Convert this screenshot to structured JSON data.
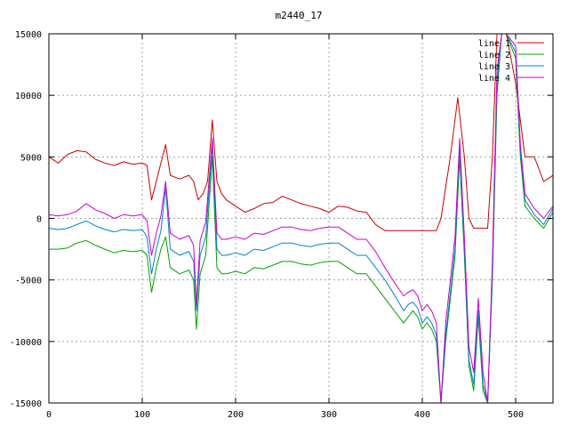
{
  "chart_data": {
    "type": "line",
    "title": "m2440_17",
    "xlabel": "",
    "ylabel": "",
    "xlim": [
      0,
      540
    ],
    "ylim": [
      -15000,
      15000
    ],
    "x_ticks": [
      0,
      100,
      200,
      300,
      400,
      500
    ],
    "y_ticks": [
      -15000,
      -10000,
      -5000,
      0,
      5000,
      10000,
      15000
    ],
    "grid": true,
    "legend_position": "top-right",
    "series": [
      {
        "name": "line 1",
        "color": "#cc0000",
        "points": [
          [
            0,
            5000
          ],
          [
            10,
            4500
          ],
          [
            20,
            5200
          ],
          [
            30,
            5500
          ],
          [
            40,
            5400
          ],
          [
            50,
            4800
          ],
          [
            60,
            4500
          ],
          [
            70,
            4300
          ],
          [
            80,
            4600
          ],
          [
            90,
            4400
          ],
          [
            100,
            4500
          ],
          [
            105,
            4300
          ],
          [
            110,
            1500
          ],
          [
            115,
            3000
          ],
          [
            120,
            4500
          ],
          [
            125,
            6000
          ],
          [
            130,
            3500
          ],
          [
            140,
            3200
          ],
          [
            150,
            3500
          ],
          [
            155,
            3000
          ],
          [
            160,
            1500
          ],
          [
            165,
            2000
          ],
          [
            170,
            3000
          ],
          [
            175,
            8000
          ],
          [
            180,
            3000
          ],
          [
            185,
            2000
          ],
          [
            190,
            1500
          ],
          [
            200,
            1000
          ],
          [
            210,
            500
          ],
          [
            220,
            800
          ],
          [
            230,
            1200
          ],
          [
            240,
            1300
          ],
          [
            250,
            1800
          ],
          [
            260,
            1500
          ],
          [
            270,
            1200
          ],
          [
            280,
            1000
          ],
          [
            290,
            800
          ],
          [
            300,
            500
          ],
          [
            310,
            1000
          ],
          [
            320,
            900
          ],
          [
            330,
            600
          ],
          [
            340,
            500
          ],
          [
            350,
            -500
          ],
          [
            360,
            -1000
          ],
          [
            380,
            -1000
          ],
          [
            400,
            -1000
          ],
          [
            415,
            -1000
          ],
          [
            420,
            0
          ],
          [
            430,
            5000
          ],
          [
            438,
            9800
          ],
          [
            445,
            5000
          ],
          [
            450,
            0
          ],
          [
            455,
            -800
          ],
          [
            470,
            -800
          ],
          [
            475,
            5000
          ],
          [
            480,
            15000
          ],
          [
            490,
            15000
          ],
          [
            500,
            11000
          ],
          [
            510,
            5000
          ],
          [
            520,
            5000
          ],
          [
            530,
            3000
          ],
          [
            540,
            3500
          ]
        ]
      },
      {
        "name": "line 2",
        "color": "#00a000",
        "points": [
          [
            0,
            -2500
          ],
          [
            10,
            -2500
          ],
          [
            20,
            -2400
          ],
          [
            30,
            -2000
          ],
          [
            40,
            -1800
          ],
          [
            50,
            -2200
          ],
          [
            60,
            -2500
          ],
          [
            70,
            -2800
          ],
          [
            80,
            -2600
          ],
          [
            90,
            -2700
          ],
          [
            100,
            -2600
          ],
          [
            105,
            -3000
          ],
          [
            110,
            -6000
          ],
          [
            115,
            -4000
          ],
          [
            120,
            -2500
          ],
          [
            125,
            -1500
          ],
          [
            130,
            -4000
          ],
          [
            140,
            -4500
          ],
          [
            150,
            -4200
          ],
          [
            155,
            -5000
          ],
          [
            158,
            -9000
          ],
          [
            162,
            -4500
          ],
          [
            168,
            -3000
          ],
          [
            175,
            5000
          ],
          [
            180,
            -4000
          ],
          [
            185,
            -4500
          ],
          [
            190,
            -4500
          ],
          [
            200,
            -4300
          ],
          [
            210,
            -4500
          ],
          [
            220,
            -4000
          ],
          [
            230,
            -4100
          ],
          [
            240,
            -3800
          ],
          [
            250,
            -3500
          ],
          [
            260,
            -3500
          ],
          [
            270,
            -3700
          ],
          [
            280,
            -3800
          ],
          [
            290,
            -3600
          ],
          [
            300,
            -3500
          ],
          [
            310,
            -3500
          ],
          [
            320,
            -4000
          ],
          [
            330,
            -4500
          ],
          [
            340,
            -4500
          ],
          [
            350,
            -5500
          ],
          [
            360,
            -6500
          ],
          [
            370,
            -7500
          ],
          [
            380,
            -8500
          ],
          [
            385,
            -8000
          ],
          [
            390,
            -7500
          ],
          [
            395,
            -8000
          ],
          [
            400,
            -9000
          ],
          [
            405,
            -8500
          ],
          [
            410,
            -9000
          ],
          [
            415,
            -10000
          ],
          [
            420,
            -15000
          ],
          [
            425,
            -10000
          ],
          [
            435,
            -3000
          ],
          [
            440,
            5000
          ],
          [
            445,
            -3000
          ],
          [
            450,
            -12000
          ],
          [
            455,
            -14000
          ],
          [
            460,
            -8000
          ],
          [
            465,
            -14000
          ],
          [
            470,
            -15000
          ],
          [
            475,
            -5000
          ],
          [
            480,
            10000
          ],
          [
            485,
            15000
          ],
          [
            490,
            15000
          ],
          [
            500,
            13000
          ],
          [
            505,
            5000
          ],
          [
            510,
            1000
          ],
          [
            520,
            0
          ],
          [
            530,
            -800
          ],
          [
            540,
            500
          ]
        ]
      },
      {
        "name": "line 3",
        "color": "#0080cc",
        "points": [
          [
            0,
            -800
          ],
          [
            10,
            -900
          ],
          [
            20,
            -800
          ],
          [
            30,
            -500
          ],
          [
            40,
            -200
          ],
          [
            50,
            -600
          ],
          [
            60,
            -900
          ],
          [
            70,
            -1100
          ],
          [
            80,
            -900
          ],
          [
            90,
            -1000
          ],
          [
            100,
            -900
          ],
          [
            105,
            -1500
          ],
          [
            110,
            -4500
          ],
          [
            115,
            -2500
          ],
          [
            120,
            -1000
          ],
          [
            125,
            2500
          ],
          [
            130,
            -2500
          ],
          [
            140,
            -3000
          ],
          [
            150,
            -2700
          ],
          [
            155,
            -3500
          ],
          [
            158,
            -7500
          ],
          [
            162,
            -3000
          ],
          [
            168,
            -1500
          ],
          [
            175,
            6000
          ],
          [
            180,
            -2500
          ],
          [
            185,
            -3000
          ],
          [
            190,
            -3000
          ],
          [
            200,
            -2800
          ],
          [
            210,
            -3000
          ],
          [
            220,
            -2500
          ],
          [
            230,
            -2600
          ],
          [
            240,
            -2300
          ],
          [
            250,
            -2000
          ],
          [
            260,
            -2000
          ],
          [
            270,
            -2200
          ],
          [
            280,
            -2300
          ],
          [
            290,
            -2100
          ],
          [
            300,
            -2000
          ],
          [
            310,
            -2000
          ],
          [
            320,
            -2500
          ],
          [
            330,
            -3000
          ],
          [
            340,
            -3000
          ],
          [
            350,
            -4000
          ],
          [
            360,
            -5000
          ],
          [
            370,
            -6200
          ],
          [
            380,
            -7500
          ],
          [
            385,
            -7000
          ],
          [
            390,
            -6800
          ],
          [
            395,
            -7300
          ],
          [
            400,
            -8500
          ],
          [
            405,
            -8000
          ],
          [
            410,
            -8500
          ],
          [
            415,
            -9500
          ],
          [
            420,
            -15000
          ],
          [
            425,
            -9500
          ],
          [
            435,
            -2500
          ],
          [
            440,
            6000
          ],
          [
            445,
            -2500
          ],
          [
            450,
            -11500
          ],
          [
            455,
            -13500
          ],
          [
            460,
            -7500
          ],
          [
            465,
            -13500
          ],
          [
            470,
            -15000
          ],
          [
            475,
            -4500
          ],
          [
            480,
            11000
          ],
          [
            485,
            15000
          ],
          [
            490,
            15000
          ],
          [
            500,
            13500
          ],
          [
            505,
            5500
          ],
          [
            510,
            1500
          ],
          [
            520,
            300
          ],
          [
            530,
            -500
          ],
          [
            540,
            800
          ]
        ]
      },
      {
        "name": "line 4",
        "color": "#cc00cc",
        "points": [
          [
            0,
            300
          ],
          [
            10,
            200
          ],
          [
            20,
            300
          ],
          [
            30,
            600
          ],
          [
            40,
            1200
          ],
          [
            50,
            700
          ],
          [
            60,
            400
          ],
          [
            70,
            0
          ],
          [
            80,
            300
          ],
          [
            90,
            200
          ],
          [
            100,
            300
          ],
          [
            105,
            -200
          ],
          [
            110,
            -3000
          ],
          [
            115,
            -1200
          ],
          [
            120,
            200
          ],
          [
            125,
            3000
          ],
          [
            130,
            -1200
          ],
          [
            140,
            -1700
          ],
          [
            150,
            -1400
          ],
          [
            155,
            -2200
          ],
          [
            158,
            -7000
          ],
          [
            162,
            -1800
          ],
          [
            168,
            -300
          ],
          [
            175,
            6500
          ],
          [
            180,
            -1200
          ],
          [
            185,
            -1700
          ],
          [
            190,
            -1700
          ],
          [
            200,
            -1500
          ],
          [
            210,
            -1700
          ],
          [
            220,
            -1200
          ],
          [
            230,
            -1300
          ],
          [
            240,
            -1000
          ],
          [
            250,
            -700
          ],
          [
            260,
            -700
          ],
          [
            270,
            -900
          ],
          [
            280,
            -1000
          ],
          [
            290,
            -800
          ],
          [
            300,
            -700
          ],
          [
            310,
            -700
          ],
          [
            320,
            -1200
          ],
          [
            330,
            -1700
          ],
          [
            340,
            -1700
          ],
          [
            350,
            -2700
          ],
          [
            360,
            -4000
          ],
          [
            370,
            -5200
          ],
          [
            380,
            -6300
          ],
          [
            385,
            -6000
          ],
          [
            390,
            -5800
          ],
          [
            395,
            -6300
          ],
          [
            400,
            -7500
          ],
          [
            405,
            -7000
          ],
          [
            410,
            -7500
          ],
          [
            415,
            -8500
          ],
          [
            420,
            -15000
          ],
          [
            425,
            -8500
          ],
          [
            435,
            -1500
          ],
          [
            440,
            6500
          ],
          [
            445,
            -1500
          ],
          [
            450,
            -10500
          ],
          [
            455,
            -12500
          ],
          [
            460,
            -6500
          ],
          [
            465,
            -12500
          ],
          [
            470,
            -15000
          ],
          [
            475,
            -3500
          ],
          [
            480,
            12000
          ],
          [
            485,
            15000
          ],
          [
            490,
            15000
          ],
          [
            500,
            14000
          ],
          [
            505,
            6000
          ],
          [
            510,
            2000
          ],
          [
            520,
            800
          ],
          [
            530,
            0
          ],
          [
            540,
            1000
          ]
        ]
      }
    ]
  }
}
